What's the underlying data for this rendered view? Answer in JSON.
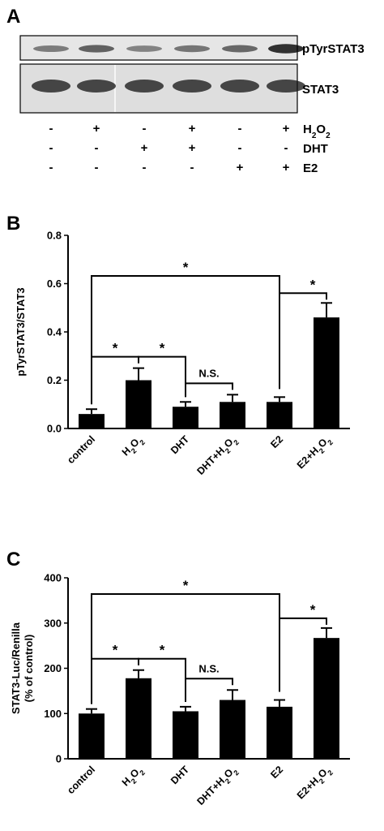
{
  "panels": {
    "a": "A",
    "b": "B",
    "c": "C"
  },
  "blot": {
    "bands": [
      "pTyrSTAT3",
      "STAT3"
    ],
    "conditions": [
      {
        "name": "H",
        "sub": "2",
        "mid": "O",
        "sub2": "2",
        "signs": [
          "-",
          "+",
          "-",
          "+",
          "-",
          "+"
        ]
      },
      {
        "name": "DHT",
        "signs": [
          "-",
          "-",
          "+",
          "+",
          "-",
          "-"
        ]
      },
      {
        "name": "E2",
        "signs": [
          "-",
          "-",
          "-",
          "-",
          "+",
          "+"
        ]
      }
    ],
    "ptyr_intensity": [
      0.35,
      0.55,
      0.3,
      0.4,
      0.5,
      0.9
    ],
    "stat3_intensity": [
      1,
      1,
      1,
      1,
      1,
      1
    ]
  },
  "chart_data": [
    {
      "type": "bar",
      "categories": [
        "control",
        "H2O2",
        "DHT",
        "DHT+H2O2",
        "E2",
        "E2+H2O2"
      ],
      "values": [
        0.06,
        0.2,
        0.09,
        0.11,
        0.11,
        0.46
      ],
      "errors": [
        0.02,
        0.05,
        0.02,
        0.03,
        0.02,
        0.06
      ],
      "ylabel": "pTyrSTAT3/STAT3",
      "ylim": [
        0,
        0.8
      ],
      "yticks": [
        "0.0",
        "0.2",
        "0.4",
        "0.6",
        "0.8"
      ],
      "significance": [
        {
          "from": 0,
          "to": 4,
          "label": "*"
        },
        {
          "from": 0,
          "to": 1,
          "label": "*"
        },
        {
          "from": 1,
          "to": 2,
          "label": "*"
        },
        {
          "from": 2,
          "to": 3,
          "label": "N.S."
        },
        {
          "from": 4,
          "to": 5,
          "label": "*"
        }
      ]
    },
    {
      "type": "bar",
      "categories": [
        "control",
        "H2O2",
        "DHT",
        "DHT+H2O2",
        "E2",
        "E2+H2O2"
      ],
      "values": [
        100,
        178,
        105,
        130,
        115,
        267
      ],
      "errors": [
        10,
        18,
        10,
        22,
        15,
        22
      ],
      "ylabel": "STAT3-Luc/Renilla",
      "ylabel2": "(% of control)",
      "ylim": [
        0,
        400
      ],
      "yticks": [
        "0",
        "100",
        "200",
        "300",
        "400"
      ],
      "significance": [
        {
          "from": 0,
          "to": 4,
          "label": "*"
        },
        {
          "from": 0,
          "to": 1,
          "label": "*"
        },
        {
          "from": 1,
          "to": 2,
          "label": "*"
        },
        {
          "from": 2,
          "to": 3,
          "label": "N.S."
        },
        {
          "from": 4,
          "to": 5,
          "label": "*"
        }
      ]
    }
  ]
}
